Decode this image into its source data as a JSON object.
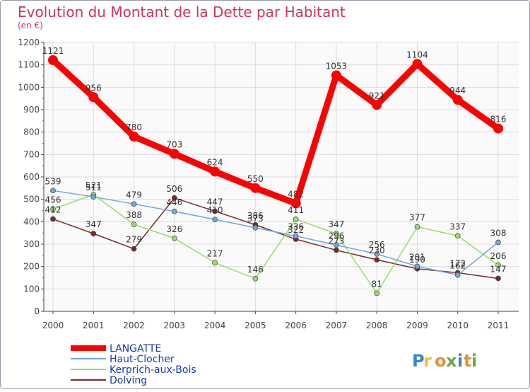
{
  "chart_data": {
    "type": "line",
    "title": "Evolution du Montant de la Dette par Habitant",
    "subtitle": "(en €)",
    "xlabel": "",
    "ylabel": "",
    "categories": [
      "2000",
      "2001",
      "2002",
      "2003",
      "2004",
      "2005",
      "2006",
      "2007",
      "2008",
      "2009",
      "2010",
      "2011"
    ],
    "y_ticks": [
      0,
      100,
      200,
      300,
      400,
      500,
      600,
      700,
      800,
      900,
      1000,
      1100,
      1200
    ],
    "ylim": [
      0,
      1200
    ],
    "grid": true,
    "legend_position": "bottom-left",
    "series": [
      {
        "name": "LANGATTE",
        "color": "#ff0000",
        "values": [
          1121,
          956,
          780,
          703,
          624,
          550,
          482,
          1053,
          921,
          1104,
          944,
          816
        ]
      },
      {
        "name": "Haut-Clocher",
        "color": "#6fa8dc",
        "values": [
          539,
          511,
          479,
          446,
          410,
          373,
          336,
          296,
          256,
          201,
          162,
          308
        ]
      },
      {
        "name": "Kerprich-aux-Bois",
        "color": "#99dd66",
        "values": [
          456,
          521,
          388,
          326,
          217,
          146,
          411,
          347,
          81,
          377,
          337,
          206
        ]
      },
      {
        "name": "Dolving",
        "color": "#7b2a2a",
        "values": [
          412,
          347,
          279,
          506,
          447,
          386,
          322,
          273,
          230,
          190,
          172,
          147
        ]
      }
    ]
  },
  "brand": {
    "text": "Proxiti",
    "letters": [
      "P",
      "r",
      "o",
      "x",
      "i",
      "t",
      "i"
    ],
    "colors": [
      "#3d85c6",
      "#f1c232",
      "#e69138",
      "#6aa84f",
      "#3d85c6",
      "#e69138",
      "#6aa84f"
    ]
  },
  "colors": {
    "title": "#cc3366",
    "axis": "#444444",
    "grid": "#dddddd",
    "plot_bg": "#fafafa"
  }
}
